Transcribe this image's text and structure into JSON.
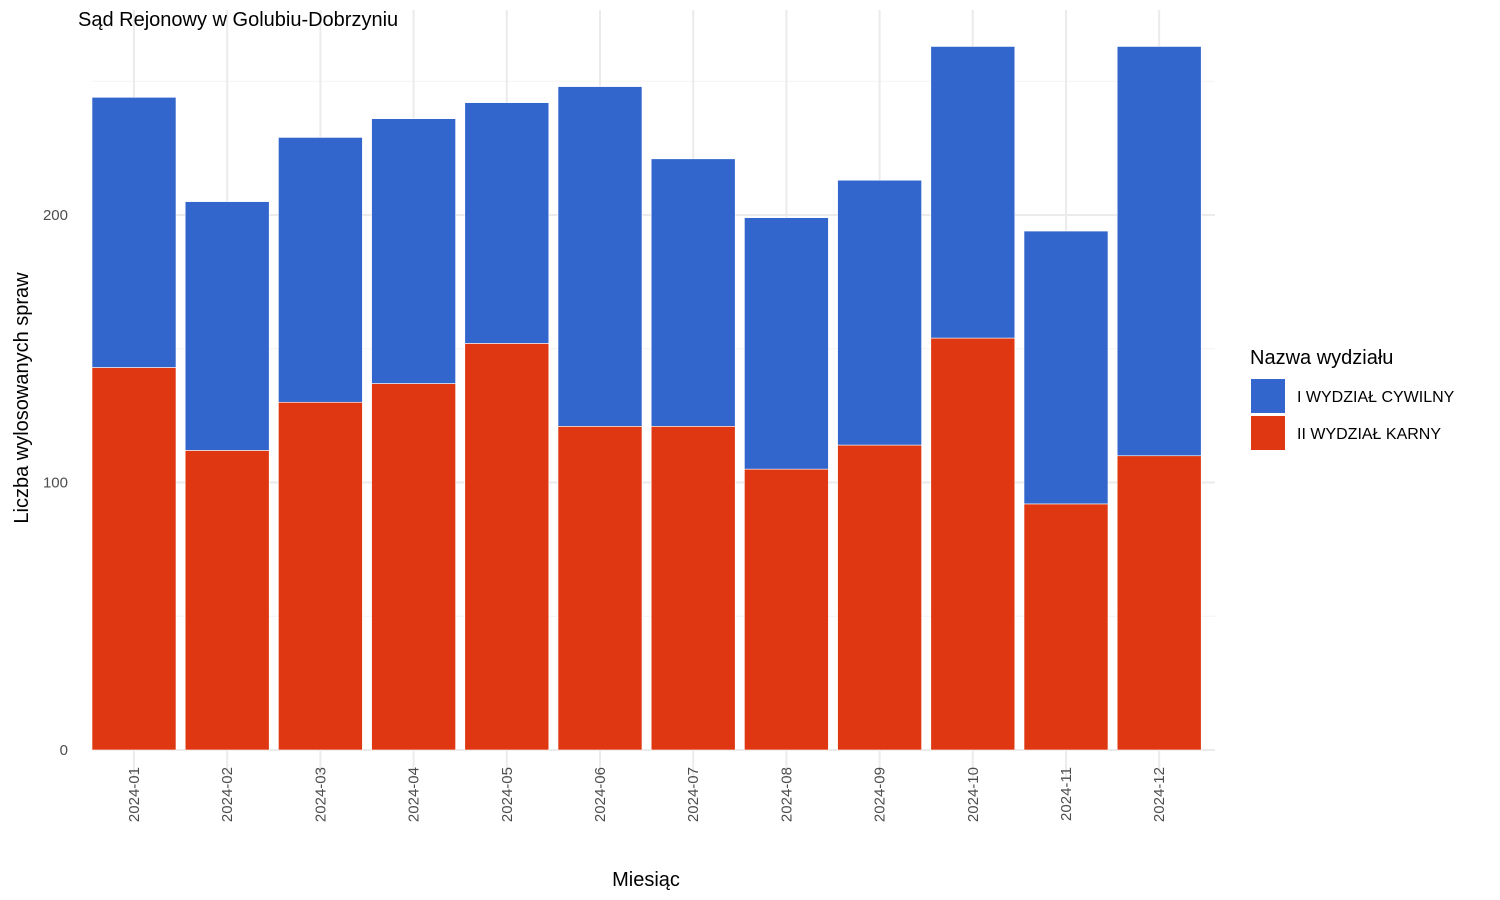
{
  "chart_data": {
    "type": "bar",
    "stacked": true,
    "title": "Sąd Rejonowy w Golubiu-Dobrzyniu",
    "xlabel": "Miesiąc",
    "ylabel": "Liczba wylosowanych spraw",
    "categories": [
      "2024-01",
      "2024-02",
      "2024-03",
      "2024-04",
      "2024-05",
      "2024-06",
      "2024-07",
      "2024-08",
      "2024-09",
      "2024-10",
      "2024-11",
      "2024-12"
    ],
    "y_ticks": [
      0,
      100,
      200
    ],
    "ylim": [
      0,
      270
    ],
    "grid": true,
    "legend": {
      "title": "Nazwa wydziału",
      "placement": "right"
    },
    "series": [
      {
        "name": "II WYDZIAŁ KARNY",
        "color": "#DE3712",
        "values": [
          143,
          112,
          130,
          137,
          152,
          121,
          121,
          105,
          114,
          154,
          92,
          110
        ]
      },
      {
        "name": "I WYDZIAŁ CYWILNY",
        "color": "#3366CC",
        "values": [
          101,
          93,
          99,
          99,
          90,
          127,
          100,
          94,
          99,
          109,
          102,
          153
        ]
      }
    ]
  }
}
